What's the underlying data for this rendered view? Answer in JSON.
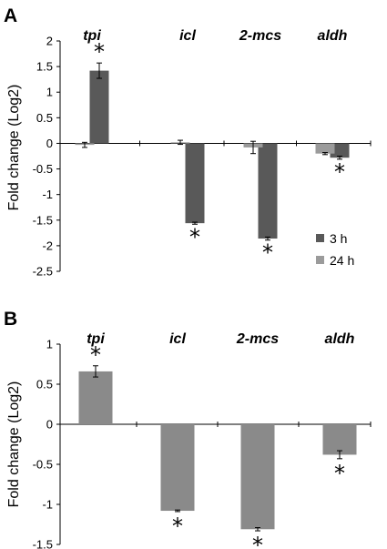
{
  "chart_data": [
    {
      "panel": "A",
      "type": "bar",
      "categories": [
        "tpi",
        "icl",
        "2-mcs",
        "aldh"
      ],
      "ylabel": "Fold change (Log2)",
      "ylim": [
        -2.5,
        2
      ],
      "yticks": [
        "2",
        "1.5",
        "1",
        "0.5",
        "0",
        "-0.5",
        "-1",
        "-1.5",
        "-2",
        "-2.5"
      ],
      "legend": {
        "placement": "bottom-right",
        "entries": [
          "3 h",
          "24 h"
        ]
      },
      "series": [
        {
          "name": "3 h",
          "color": "#595959",
          "values": [
            1.42,
            -1.56,
            -1.86,
            -0.28
          ],
          "errors": [
            0.15,
            0.02,
            0.03,
            0.03
          ],
          "significant": [
            true,
            true,
            true,
            true
          ],
          "significance_symbol": "*"
        },
        {
          "name": "24 h",
          "color": "#9b9b9b",
          "values": [
            -0.03,
            0.02,
            -0.08,
            -0.2
          ],
          "errors": [
            0.05,
            0.04,
            0.12,
            0.02
          ],
          "significant": [
            false,
            false,
            false,
            false
          ],
          "significance_symbol": "*"
        }
      ]
    },
    {
      "panel": "B",
      "type": "bar",
      "categories": [
        "tpi",
        "icl",
        "2-mcs",
        "aldh"
      ],
      "ylabel": "Fold change (Log2)",
      "ylim": [
        -1.5,
        1
      ],
      "yticks": [
        "1",
        "0.5",
        "0",
        "-0.5",
        "-1",
        "-1.5"
      ],
      "series": [
        {
          "name": "",
          "color": "#8a8a8a",
          "values": [
            0.66,
            -1.08,
            -1.31,
            -0.38
          ],
          "errors": [
            0.07,
            0.01,
            0.02,
            0.05
          ],
          "significant": [
            true,
            true,
            true,
            true
          ],
          "significance_symbol": "*"
        }
      ]
    }
  ]
}
